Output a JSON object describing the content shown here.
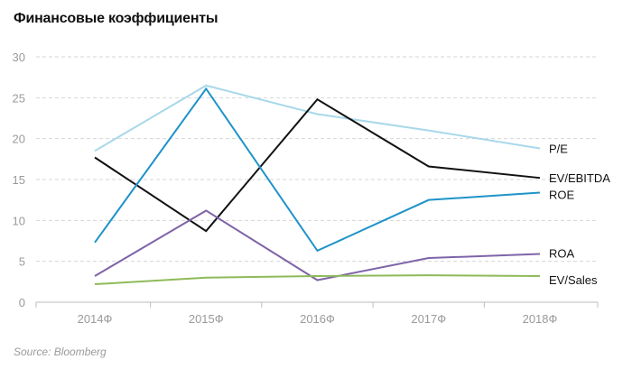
{
  "title": "Финансовые коэффициенты",
  "source": "Source: Bloomberg",
  "chart_data": {
    "type": "line",
    "title": "Финансовые коэффициенты",
    "xlabel": "",
    "ylabel": "",
    "ylim": [
      0,
      30
    ],
    "yticks": [
      "0",
      "5",
      "10",
      "15",
      "20",
      "25",
      "30"
    ],
    "grid": true,
    "legend": "inline labels at right end of each line",
    "categories": [
      "2014Ф",
      "2015Ф",
      "2016Ф",
      "2017Ф",
      "2018Ф"
    ],
    "series": [
      {
        "name": "P/E",
        "color": "#a8d8ea",
        "values": [
          18.5,
          26.5,
          23.0,
          21.0,
          18.8
        ]
      },
      {
        "name": "EV/EBITDA",
        "color": "#111111",
        "values": [
          17.7,
          8.7,
          24.8,
          16.6,
          15.2
        ]
      },
      {
        "name": "ROE",
        "color": "#1f93c8",
        "values": [
          7.3,
          26.1,
          6.3,
          12.5,
          13.4
        ]
      },
      {
        "name": "ROA",
        "color": "#7e64a8",
        "values": [
          3.2,
          11.2,
          2.7,
          5.4,
          5.9
        ]
      },
      {
        "name": "EV/Sales",
        "color": "#8fba5a",
        "values": [
          2.2,
          3.0,
          3.2,
          3.3,
          3.2
        ]
      }
    ]
  }
}
